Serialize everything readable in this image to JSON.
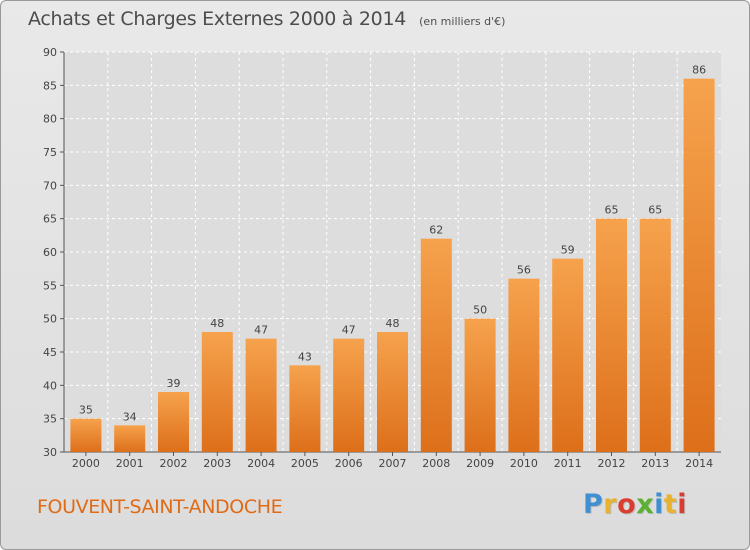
{
  "chart_data": {
    "type": "bar",
    "title": "Achats et Charges Externes 2000 à 2014",
    "subtitle": "(en milliers d'€)",
    "categories": [
      "2000",
      "2001",
      "2002",
      "2003",
      "2004",
      "2005",
      "2006",
      "2007",
      "2008",
      "2009",
      "2010",
      "2011",
      "2012",
      "2013",
      "2014"
    ],
    "values": [
      35,
      34,
      39,
      48,
      47,
      43,
      47,
      48,
      62,
      50,
      56,
      59,
      65,
      65,
      86
    ],
    "ylim": [
      30,
      90
    ],
    "yticks": [
      30,
      35,
      40,
      45,
      50,
      55,
      60,
      65,
      70,
      75,
      80,
      85,
      90
    ],
    "grid": true,
    "bar_colors": {
      "top": "#f6a24d",
      "bottom": "#dd6f1a"
    },
    "xlabel": "",
    "ylabel": ""
  },
  "footer": {
    "location": "FOUVENT-SAINT-ANDOCHE",
    "logo_letters": [
      {
        "char": "P",
        "color": "#3f8fd2"
      },
      {
        "char": "r",
        "color": "#e8b12e"
      },
      {
        "char": "o",
        "color": "#d93d2f"
      },
      {
        "char": "x",
        "color": "#5ab031"
      },
      {
        "char": "i",
        "color": "#3f8fd2"
      },
      {
        "char": "t",
        "color": "#e8b12e"
      },
      {
        "char": "i",
        "color": "#d93d2f"
      }
    ]
  }
}
